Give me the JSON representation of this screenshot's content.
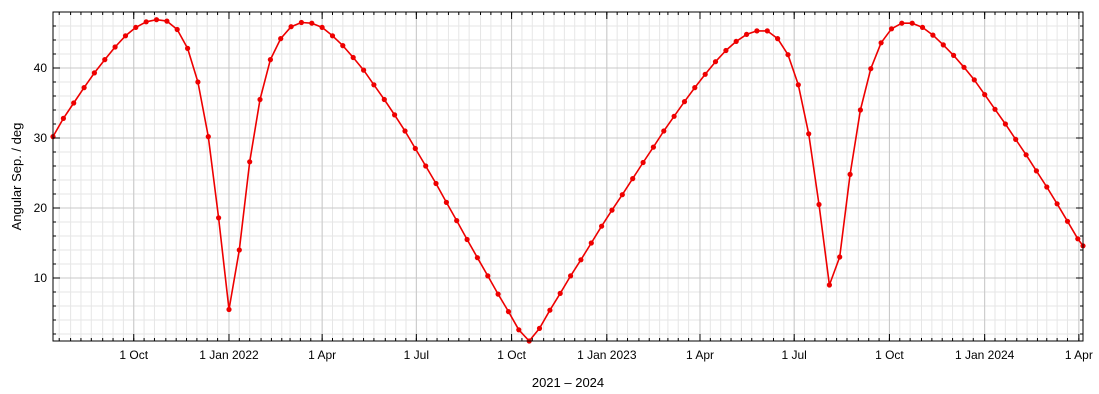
{
  "chart_data": {
    "type": "line",
    "xlabel": "2021 – 2024",
    "ylabel": "Angular Sep. / deg",
    "xlim": [
      "2021-07-15",
      "2024-04-05"
    ],
    "ylim": [
      1,
      48
    ],
    "grid": true,
    "x_ticks": [
      {
        "date": "2021-10-01",
        "label": "1 Oct"
      },
      {
        "date": "2022-01-01",
        "label": "1 Jan 2022"
      },
      {
        "date": "2022-04-01",
        "label": "1 Apr"
      },
      {
        "date": "2022-07-01",
        "label": "1 Jul"
      },
      {
        "date": "2022-10-01",
        "label": "1 Oct"
      },
      {
        "date": "2023-01-01",
        "label": "1 Jan 2023"
      },
      {
        "date": "2023-04-01",
        "label": "1 Apr"
      },
      {
        "date": "2023-07-01",
        "label": "1 Jul"
      },
      {
        "date": "2023-10-01",
        "label": "1 Oct"
      },
      {
        "date": "2024-01-01",
        "label": "1 Jan 2024"
      },
      {
        "date": "2024-04-01",
        "label": "1 Apr"
      }
    ],
    "y_ticks": [
      10,
      20,
      30,
      40
    ],
    "series": [
      {
        "color": "#ee0000",
        "x": [
          "2021-07-15",
          "2021-07-25",
          "2021-08-04",
          "2021-08-14",
          "2021-08-24",
          "2021-09-03",
          "2021-09-13",
          "2021-09-23",
          "2021-10-03",
          "2021-10-13",
          "2021-10-23",
          "2021-11-02",
          "2021-11-12",
          "2021-11-22",
          "2021-12-02",
          "2021-12-12",
          "2021-12-22",
          "2022-01-01",
          "2022-01-11",
          "2022-01-21",
          "2022-01-31",
          "2022-02-10",
          "2022-02-20",
          "2022-03-02",
          "2022-03-12",
          "2022-03-22",
          "2022-04-01",
          "2022-04-11",
          "2022-04-21",
          "2022-05-01",
          "2022-05-11",
          "2022-05-21",
          "2022-05-31",
          "2022-06-10",
          "2022-06-20",
          "2022-06-30",
          "2022-07-10",
          "2022-07-20",
          "2022-07-30",
          "2022-08-09",
          "2022-08-19",
          "2022-08-29",
          "2022-09-08",
          "2022-09-18",
          "2022-09-28",
          "2022-10-08",
          "2022-10-18",
          "2022-10-28",
          "2022-11-07",
          "2022-11-17",
          "2022-11-27",
          "2022-12-07",
          "2022-12-17",
          "2022-12-27",
          "2023-01-06",
          "2023-01-16",
          "2023-01-26",
          "2023-02-05",
          "2023-02-15",
          "2023-02-25",
          "2023-03-07",
          "2023-03-17",
          "2023-03-27",
          "2023-04-06",
          "2023-04-16",
          "2023-04-26",
          "2023-05-06",
          "2023-05-16",
          "2023-05-26",
          "2023-06-05",
          "2023-06-15",
          "2023-06-25",
          "2023-07-05",
          "2023-07-15",
          "2023-07-25",
          "2023-08-04",
          "2023-08-14",
          "2023-08-24",
          "2023-09-03",
          "2023-09-13",
          "2023-09-23",
          "2023-10-03",
          "2023-10-13",
          "2023-10-23",
          "2023-11-02",
          "2023-11-12",
          "2023-11-22",
          "2023-12-02",
          "2023-12-12",
          "2023-12-22",
          "2024-01-01",
          "2024-01-11",
          "2024-01-21",
          "2024-01-31",
          "2024-02-10",
          "2024-02-20",
          "2024-03-01",
          "2024-03-11",
          "2024-03-21",
          "2024-03-31",
          "2024-04-05"
        ],
        "values": [
          30.2,
          32.8,
          35.0,
          37.2,
          39.3,
          41.2,
          43.0,
          44.6,
          45.8,
          46.6,
          46.9,
          46.7,
          45.5,
          42.8,
          38.0,
          30.2,
          18.6,
          5.5,
          14.0,
          26.6,
          35.5,
          41.2,
          44.2,
          45.9,
          46.5,
          46.4,
          45.8,
          44.6,
          43.2,
          41.5,
          39.7,
          37.6,
          35.5,
          33.3,
          31.0,
          28.5,
          26.0,
          23.5,
          20.8,
          18.2,
          15.5,
          12.9,
          10.3,
          7.7,
          5.2,
          2.6,
          1.0,
          2.8,
          5.4,
          7.8,
          10.3,
          12.6,
          15.0,
          17.4,
          19.7,
          21.9,
          24.2,
          26.5,
          28.7,
          31.0,
          33.1,
          35.2,
          37.2,
          39.1,
          40.9,
          42.5,
          43.8,
          44.8,
          45.3,
          45.3,
          44.2,
          41.9,
          37.6,
          30.6,
          20.5,
          9.0,
          13.0,
          24.8,
          34.0,
          39.9,
          43.6,
          45.6,
          46.4,
          46.4,
          45.8,
          44.7,
          43.3,
          41.8,
          40.1,
          38.3,
          36.2,
          34.1,
          32.0,
          29.8,
          27.6,
          25.3,
          23.0,
          20.6,
          18.1,
          15.6,
          14.6
        ]
      }
    ]
  }
}
